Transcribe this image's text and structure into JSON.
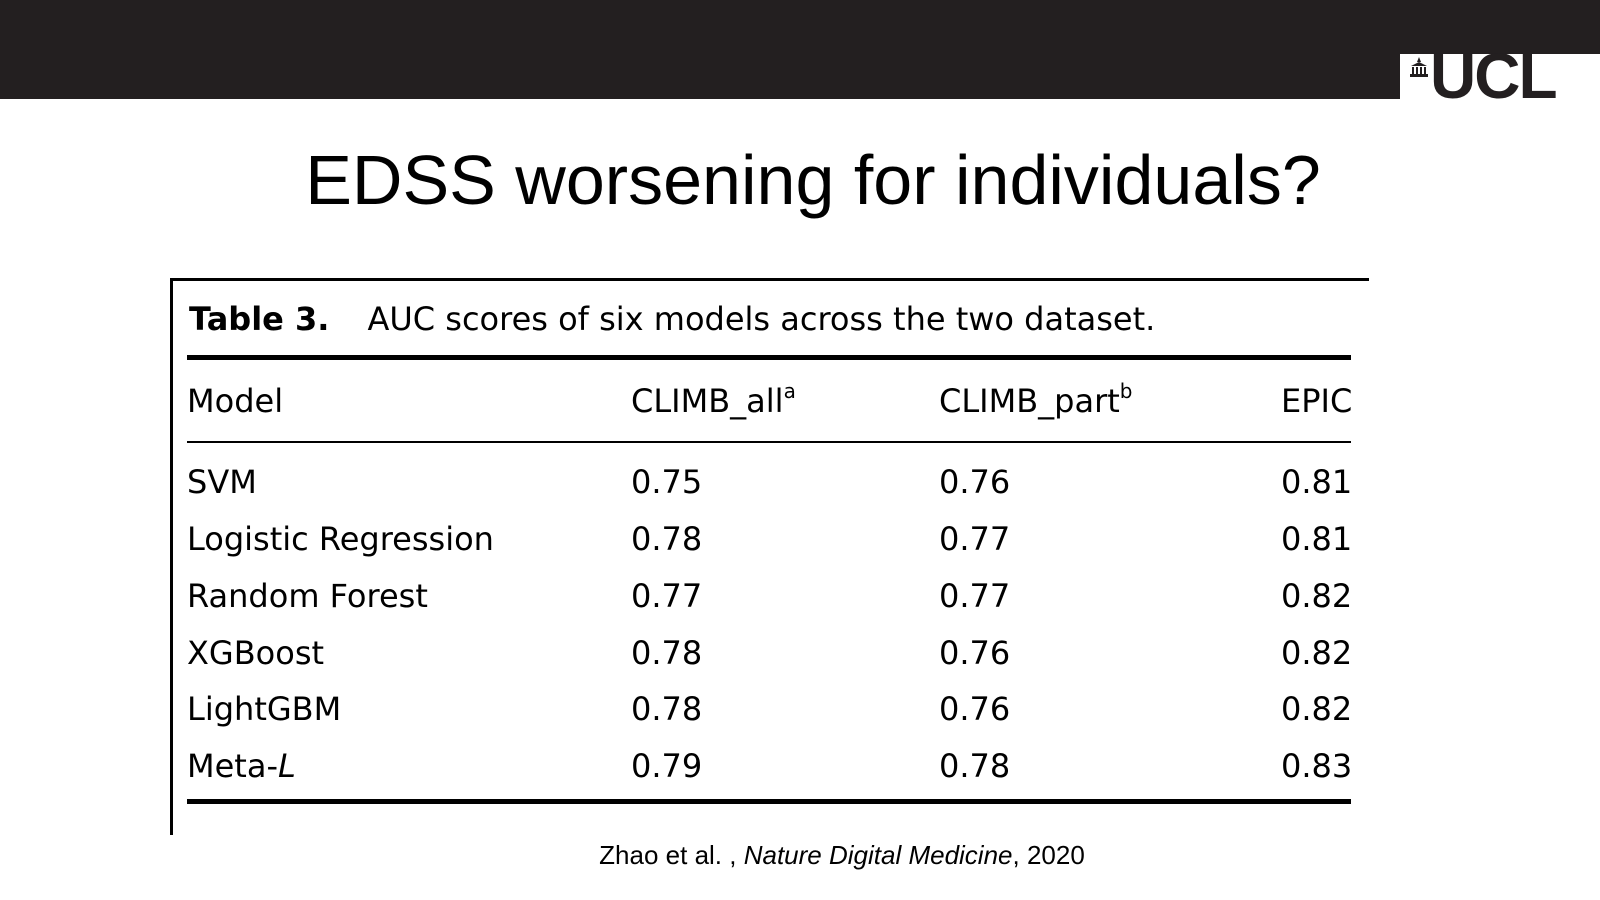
{
  "header": {
    "logo_text": "UCL",
    "logo_icon": "portico-icon",
    "colors": {
      "bar": "#231f20",
      "logo_bg": "#ffffff"
    }
  },
  "slide": {
    "title": "EDSS worsening for individuals?"
  },
  "table": {
    "caption_label": "Table 3.",
    "caption_text": "AUC scores of six models across the two dataset.",
    "headers": [
      {
        "text": "Model",
        "sup": ""
      },
      {
        "text": "CLIMB_all",
        "sup": "a"
      },
      {
        "text": "CLIMB_part",
        "sup": "b"
      },
      {
        "text": "EPIC",
        "sup": ""
      }
    ],
    "rows": [
      {
        "model": "SVM",
        "model_italic": "",
        "climb_all": "0.75",
        "climb_part": "0.76",
        "epic": "0.81"
      },
      {
        "model": "Logistic Regression",
        "model_italic": "",
        "climb_all": "0.78",
        "climb_part": "0.77",
        "epic": "0.81"
      },
      {
        "model": "Random Forest",
        "model_italic": "",
        "climb_all": "0.77",
        "climb_part": "0.77",
        "epic": "0.82"
      },
      {
        "model": "XGBoost",
        "model_italic": "",
        "climb_all": "0.78",
        "climb_part": "0.76",
        "epic": "0.82"
      },
      {
        "model": "LightGBM",
        "model_italic": "",
        "climb_all": "0.78",
        "climb_part": "0.76",
        "epic": "0.82"
      },
      {
        "model": "Meta-",
        "model_italic": "L",
        "climb_all": "0.79",
        "climb_part": "0.78",
        "epic": "0.83"
      }
    ]
  },
  "citation": {
    "authors": "Zhao et al. ,",
    "journal": "Nature Digital Medicine",
    "year": ", 2020"
  }
}
